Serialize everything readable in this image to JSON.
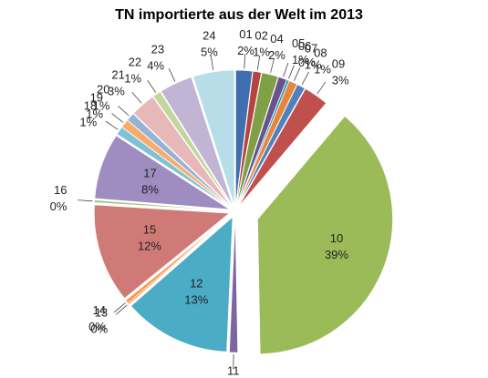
{
  "chart_data": {
    "type": "pie",
    "title": "TN importierte aus der Welt im 2013",
    "categories": [
      "01",
      "02",
      "04",
      "05",
      "06",
      "07",
      "08",
      "09",
      "10",
      "11",
      "12",
      "13",
      "14",
      "15",
      "16",
      "17",
      "18",
      "19",
      "20",
      "21",
      "22",
      "23",
      "24"
    ],
    "values": [
      2,
      1,
      2,
      1,
      0.3,
      1,
      1,
      3,
      39,
      1,
      13,
      0.2,
      0.4,
      12,
      0.3,
      8,
      1,
      1,
      1,
      3,
      1,
      4,
      5
    ],
    "value_labels": [
      "2%",
      "1%",
      "2%",
      "1%",
      "0%",
      "1%",
      "1%",
      "3%",
      "39%",
      "1%",
      "13%",
      "0%",
      "0%",
      "12%",
      "0%",
      "8%",
      "1%",
      "1%",
      "1%",
      "3%",
      "1%",
      "4%",
      "5%"
    ],
    "colors": [
      "#3f6fae",
      "#b5443f",
      "#7fa047",
      "#6a5290",
      "#3c9ab2",
      "#e7853a",
      "#4f81bd",
      "#c0504d",
      "#9bbb59",
      "#8064a2",
      "#4bacc6",
      "#f79646",
      "#f79646",
      "#d07a78",
      "#a9c47a",
      "#9f8cc0",
      "#7fc2d6",
      "#f9ab6b",
      "#95b3d7",
      "#e6b9b8",
      "#c3d69b",
      "#c2b4d4",
      "#b7dee8"
    ]
  }
}
